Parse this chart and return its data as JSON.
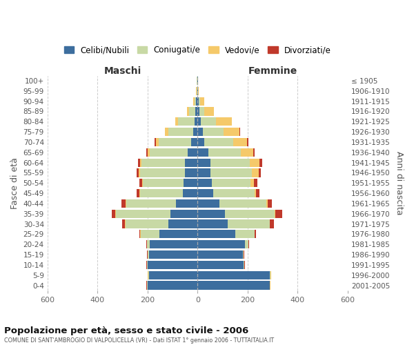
{
  "age_groups": [
    "0-4",
    "5-9",
    "10-14",
    "15-19",
    "20-24",
    "25-29",
    "30-34",
    "35-39",
    "40-44",
    "45-49",
    "50-54",
    "55-59",
    "60-64",
    "65-69",
    "70-74",
    "75-79",
    "80-84",
    "85-89",
    "90-94",
    "95-99",
    "100+"
  ],
  "birth_years": [
    "2001-2005",
    "1996-2000",
    "1991-1995",
    "1986-1990",
    "1981-1985",
    "1976-1980",
    "1971-1975",
    "1966-1970",
    "1961-1965",
    "1956-1960",
    "1951-1955",
    "1946-1950",
    "1941-1945",
    "1936-1940",
    "1931-1935",
    "1926-1930",
    "1921-1925",
    "1916-1920",
    "1911-1915",
    "1906-1910",
    "≤ 1905"
  ],
  "male_celibi": [
    200,
    195,
    200,
    195,
    190,
    152,
    118,
    108,
    85,
    60,
    55,
    50,
    50,
    40,
    25,
    18,
    12,
    8,
    5,
    2,
    2
  ],
  "male_coniugati": [
    2,
    2,
    2,
    4,
    12,
    75,
    170,
    218,
    200,
    170,
    165,
    180,
    175,
    150,
    130,
    100,
    65,
    25,
    8,
    2,
    1
  ],
  "male_vedovi": [
    1,
    1,
    1,
    1,
    1,
    2,
    2,
    2,
    2,
    2,
    2,
    4,
    6,
    8,
    12,
    12,
    12,
    10,
    4,
    1,
    0
  ],
  "male_divorziati": [
    1,
    1,
    1,
    1,
    2,
    4,
    10,
    16,
    18,
    11,
    11,
    9,
    7,
    7,
    4,
    1,
    1,
    0,
    0,
    0,
    0
  ],
  "female_celibi": [
    288,
    290,
    185,
    180,
    190,
    152,
    120,
    110,
    87,
    62,
    57,
    52,
    52,
    42,
    28,
    20,
    14,
    8,
    4,
    1,
    1
  ],
  "female_coniugati": [
    2,
    2,
    2,
    4,
    12,
    75,
    168,
    198,
    188,
    165,
    155,
    165,
    158,
    130,
    115,
    85,
    60,
    20,
    6,
    2,
    1
  ],
  "female_vedovi": [
    1,
    1,
    1,
    1,
    1,
    2,
    2,
    2,
    4,
    6,
    13,
    28,
    38,
    50,
    55,
    62,
    62,
    38,
    18,
    2,
    0
  ],
  "female_divorziati": [
    1,
    1,
    1,
    1,
    2,
    4,
    16,
    28,
    18,
    14,
    14,
    9,
    9,
    7,
    4,
    2,
    1,
    0,
    0,
    0,
    0
  ],
  "colors": {
    "celibi": "#3d6e9e",
    "coniugati": "#c8d9a5",
    "vedovi": "#f5c96a",
    "divorziati": "#c0392b"
  },
  "title": "Popolazione per età, sesso e stato civile - 2006",
  "subtitle": "COMUNE DI SANT'AMBROGIO DI VALPOLICELLA (VR) - Dati ISTAT 1° gennaio 2006 - TUTTAITALIA.IT",
  "xlabel_left": "Maschi",
  "xlabel_right": "Femmine",
  "ylabel_left": "Fasce di età",
  "ylabel_right": "Anni di nascita",
  "xlim": 600
}
